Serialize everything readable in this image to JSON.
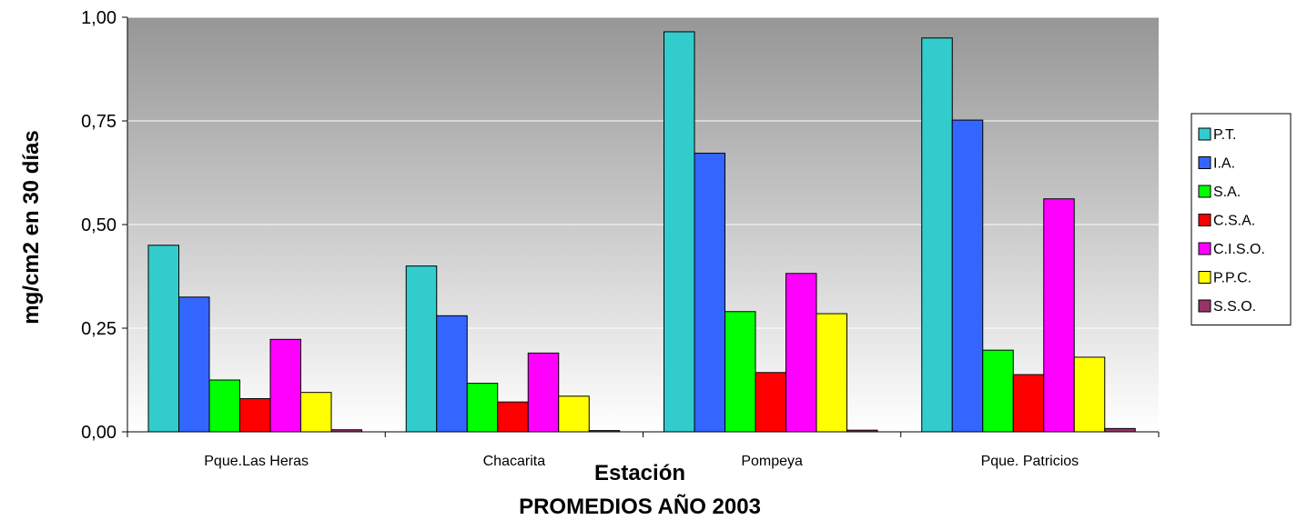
{
  "chart_data": {
    "type": "bar",
    "title": "PROMEDIOS AÑO 2003",
    "xlabel": "Estación",
    "ylabel": "mg/cm2 en 30 días",
    "ylim": [
      0,
      1
    ],
    "yticks": [
      "0,00",
      "0,25",
      "0,50",
      "0,75",
      "1,00"
    ],
    "grid": true,
    "legend_position": "right",
    "categories": [
      "Pque.Las Heras",
      "Chacarita",
      "Pompeya",
      "Pque. Patricios"
    ],
    "series": [
      {
        "name": "P.T.",
        "color": "#33CCCC",
        "values": [
          0.45,
          0.4,
          0.965,
          0.95
        ]
      },
      {
        "name": "I.A.",
        "color": "#3366FF",
        "values": [
          0.325,
          0.28,
          0.672,
          0.752
        ]
      },
      {
        "name": "S.A.",
        "color": "#00FF00",
        "values": [
          0.125,
          0.117,
          0.29,
          0.197
        ]
      },
      {
        "name": "C.S.A.",
        "color": "#FF0000",
        "values": [
          0.08,
          0.072,
          0.143,
          0.138
        ]
      },
      {
        "name": "C.I.S.O.",
        "color": "#FF00FF",
        "values": [
          0.223,
          0.19,
          0.382,
          0.562
        ]
      },
      {
        "name": "P.P.C.",
        "color": "#FFFF00",
        "values": [
          0.095,
          0.086,
          0.285,
          0.18
        ]
      },
      {
        "name": "S.S.O.",
        "color": "#993366",
        "values": [
          0.005,
          0.003,
          0.004,
          0.008
        ]
      }
    ]
  }
}
